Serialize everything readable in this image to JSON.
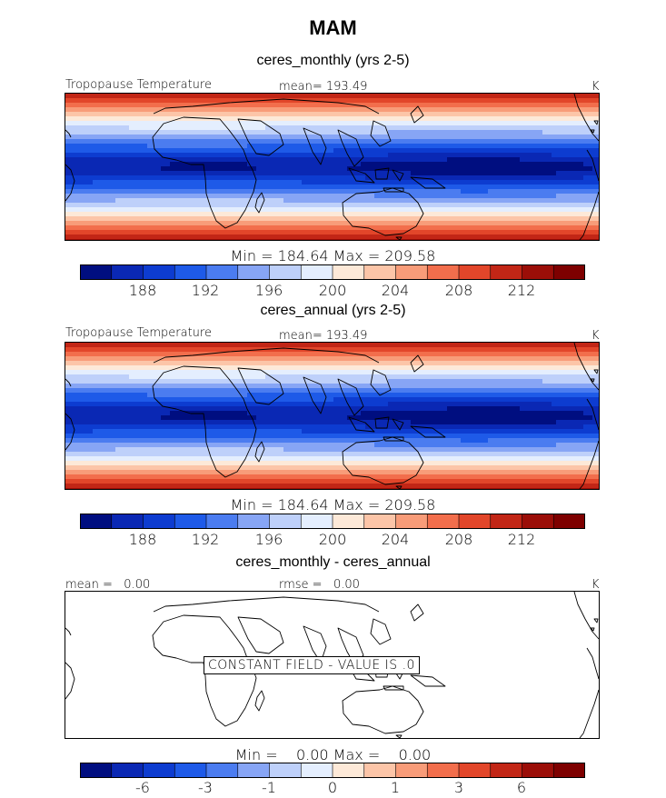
{
  "title": "MAM",
  "colors": [
    "#000e80",
    "#0a28b4",
    "#0d3cd0",
    "#1e5ae8",
    "#4b7cf0",
    "#87a5f5",
    "#bed0fa",
    "#e4eefe",
    "#fde9d8",
    "#fcc5a8",
    "#f89c79",
    "#f26e4c",
    "#e2462a",
    "#c22616",
    "#9b0e08",
    "#7e0000"
  ],
  "coast_color": "#000000",
  "panels": [
    {
      "title": "ceres_monthly (yrs 2-5)",
      "left_label": "Tropopause Temperature",
      "center_label": "mean= 193.49",
      "units": "K",
      "minmax": "Min = 184.64 Max = 209.58",
      "tick_labels": [
        "188",
        "192",
        "196",
        "200",
        "204",
        "208",
        "212"
      ]
    },
    {
      "title": "ceres_annual (yrs 2-5)",
      "left_label": "Tropopause Temperature",
      "center_label": "mean= 193.49",
      "units": "K",
      "minmax": "Min = 184.64 Max = 209.58",
      "tick_labels": [
        "188",
        "192",
        "196",
        "200",
        "204",
        "208",
        "212"
      ]
    },
    {
      "title": "ceres_monthly - ceres_annual",
      "left_label": "mean =   0.00",
      "center_label": "rmse =   0.00",
      "units": "K",
      "minmax": "Min =    0.00 Max =    0.00",
      "constant_message": "CONSTANT FIELD - VALUE IS .0",
      "tick_labels": [
        "-6",
        "-3",
        "-1",
        "0",
        "1",
        "3",
        "6"
      ]
    }
  ],
  "chart_data": [
    {
      "type": "heatmap",
      "title": "ceres_monthly (yrs 2-5)",
      "variable": "Tropopause Temperature",
      "units": "K",
      "mean": 193.49,
      "min": 184.64,
      "max": 209.58,
      "contour_levels": [
        186,
        188,
        190,
        192,
        194,
        196,
        198,
        200,
        202,
        204,
        206,
        208,
        210,
        212,
        214
      ],
      "colorbar_ticks": [
        188,
        192,
        196,
        200,
        204,
        208,
        212
      ]
    },
    {
      "type": "heatmap",
      "title": "ceres_annual (yrs 2-5)",
      "variable": "Tropopause Temperature",
      "units": "K",
      "mean": 193.49,
      "min": 184.64,
      "max": 209.58,
      "contour_levels": [
        186,
        188,
        190,
        192,
        194,
        196,
        198,
        200,
        202,
        204,
        206,
        208,
        210,
        212,
        214
      ],
      "colorbar_ticks": [
        188,
        192,
        196,
        200,
        204,
        208,
        212
      ]
    },
    {
      "type": "heatmap",
      "title": "ceres_monthly - ceres_annual",
      "units": "K",
      "mean": 0.0,
      "rmse": 0.0,
      "min": 0.0,
      "max": 0.0,
      "constant_value": 0.0,
      "colorbar_ticks": [
        -6,
        -3,
        -1,
        0,
        1,
        3,
        6
      ]
    }
  ]
}
